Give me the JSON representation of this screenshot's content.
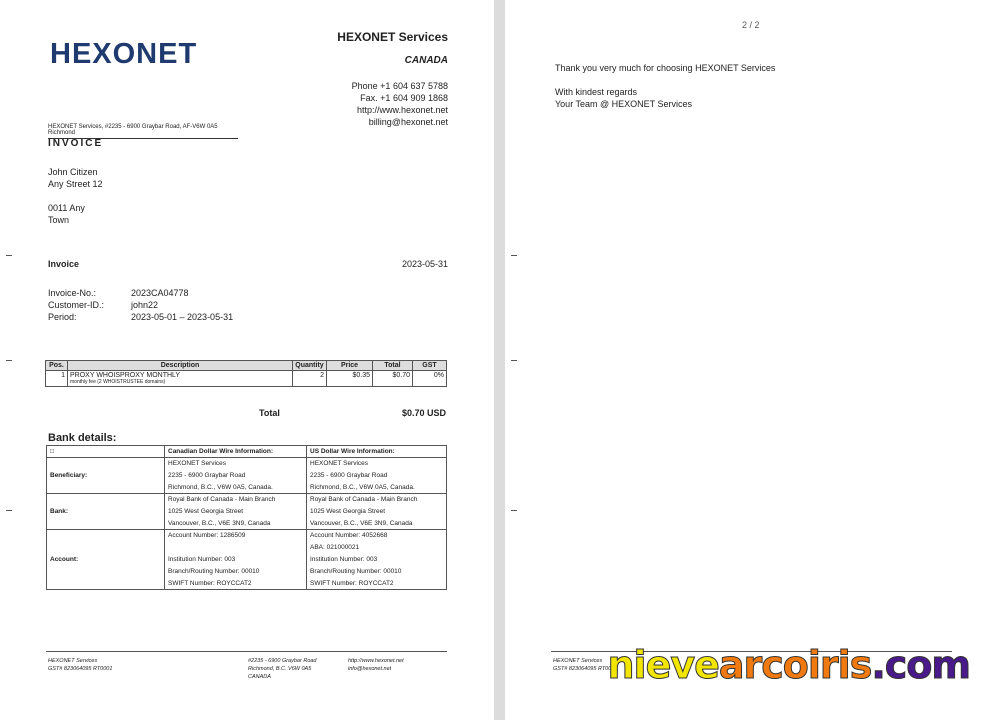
{
  "page1": {
    "logo": "HEXONET",
    "company": "HEXONET Services",
    "country": "CANADA",
    "phone": "Phone +1 604 637 5788",
    "fax": "Fax. +1 604 909 1868",
    "web": "http://www.hexonet.net",
    "email": "billing@hexonet.net",
    "sender_line": "HEXONET Services, #2235 - 6900 Graybar Road, AF-V6W 0A5 Richmond",
    "doc_title": "INVOICE",
    "recipient": [
      "John Citizen",
      "Any Street 12",
      "",
      "0011 Any",
      "Town"
    ],
    "invoice_label": "Invoice",
    "invoice_date": "2023-05-31",
    "meta": [
      {
        "k": "Invoice-No.:",
        "v": "2023CA04778"
      },
      {
        "k": "Customer-ID.:",
        "v": "john22"
      },
      {
        "k": "Period:",
        "v": "2023-05-01  –  2023-05-31"
      }
    ],
    "items": {
      "headers": [
        "Pos.",
        "Description",
        "Quantity",
        "Price",
        "Total",
        "GST"
      ],
      "rows": [
        {
          "pos": "1",
          "desc": "PROXY WHOISPROXY MONTHLY",
          "sub": "monthly fee (2 WHOISTRUSTEE domains)",
          "qty": "2",
          "price": "$0.35",
          "total": "$0.70",
          "gst": "0%"
        }
      ]
    },
    "total_label": "Total",
    "total_value": "$0.70 USD",
    "bank_title": "Bank details:",
    "bank": {
      "headers": [
        "□",
        "Canadian Dollar Wire Information:",
        "US Dollar Wire Information:"
      ],
      "groups": [
        {
          "label": "Beneficiary:",
          "cad": [
            "HEXONET Services",
            "2235 - 6900 Graybar Road",
            "Richmond, B.C., V6W 0A5, Canada."
          ],
          "usd": [
            "HEXONET Services",
            "2235 - 6900 Graybar Road",
            "Richmond, B.C., V6W 0A5, Canada."
          ]
        },
        {
          "label": "Bank:",
          "cad": [
            "Royal Bank of Canada - Main Branch",
            "1025 West Georgia Street",
            "Vancouver, B.C., V6E 3N9, Canada"
          ],
          "usd": [
            "Royal Bank of Canada - Main Branch",
            "1025 West Georgia Street",
            "Vancouver, B.C., V6E 3N9, Canada"
          ]
        },
        {
          "label": "Account:",
          "cad": [
            "Account Number: 1286509",
            "",
            "Institution Number: 003",
            "Branch/Routing Number: 00010",
            "SWIFT Number: ROYCCAT2"
          ],
          "usd": [
            "Account Number: 4052668",
            "ABA: 021000021",
            "Institution Number: 003",
            "Branch/Routing Number: 00010",
            "SWIFT Number: ROYCCAT2"
          ]
        }
      ]
    },
    "footer": {
      "c1": [
        "HEXONET Services",
        "GST# 823064095 RT0001"
      ],
      "c2": [
        "#2235 - 6900 Graybar Road",
        "Richmond, B.C. V6W 0A5",
        "CANADA"
      ],
      "c3": [
        "http://www.hexonet.net",
        "info@hexonet.net"
      ]
    }
  },
  "page2": {
    "page_num": "2 / 2",
    "thanks": "Thank you very much for choosing HEXONET Services",
    "regards": "With kindest regards",
    "team": "Your Team @ HEXONET Services",
    "footer": [
      "HEXONET Services",
      "GST# 823064095 RT0001"
    ]
  },
  "watermark": {
    "parts": [
      "nieve",
      "arcoiris",
      ".com"
    ],
    "colors": [
      "#f2e600",
      "#f07a10",
      "#4a1a8a"
    ]
  }
}
